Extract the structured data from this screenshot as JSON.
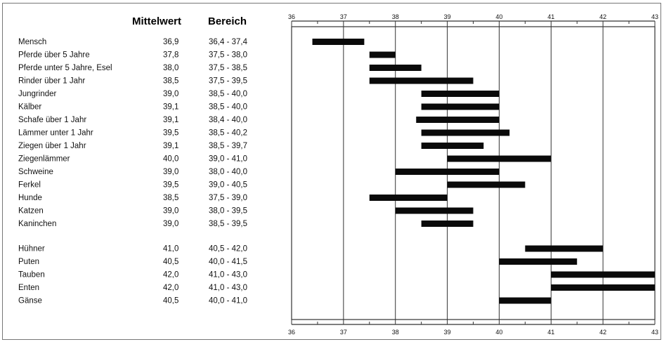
{
  "chart_data": {
    "type": "bar",
    "orientation": "horizontal-range",
    "headers": {
      "mean": "Mittelwert",
      "range": "Bereich"
    },
    "xlim": [
      36,
      43
    ],
    "xticks": [
      "36",
      "37",
      "38",
      "39",
      "40",
      "41",
      "42",
      "43"
    ],
    "grid": true,
    "groups": [
      {
        "rows": [
          {
            "label": "Mensch",
            "mean": "36,9",
            "range": "36,4 - 37,4",
            "min": 36.4,
            "max": 37.4
          },
          {
            "label": "Pferde über 5 Jahre",
            "mean": "37,8",
            "range": "37,5 - 38,0",
            "min": 37.5,
            "max": 38.0
          },
          {
            "label": "Pferde unter 5 Jahre, Esel",
            "mean": "38,0",
            "range": "37,5 - 38,5",
            "min": 37.5,
            "max": 38.5
          },
          {
            "label": "Rinder über 1 Jahr",
            "mean": "38,5",
            "range": "37,5 - 39,5",
            "min": 37.5,
            "max": 39.5
          },
          {
            "label": "Jungrinder",
            "mean": "39,0",
            "range": "38,5 - 40,0",
            "min": 38.5,
            "max": 40.0
          },
          {
            "label": "Kälber",
            "mean": "39,1",
            "range": "38,5 - 40,0",
            "min": 38.5,
            "max": 40.0
          },
          {
            "label": "Schafe über 1 Jahr",
            "mean": "39,1",
            "range": "38,4 - 40,0",
            "min": 38.4,
            "max": 40.0
          },
          {
            "label": "Lämmer unter 1 Jahr",
            "mean": "39,5",
            "range": "38,5 - 40,2",
            "min": 38.5,
            "max": 40.2
          },
          {
            "label": "Ziegen über 1 Jahr",
            "mean": "39,1",
            "range": "38,5 - 39,7",
            "min": 38.5,
            "max": 39.7
          },
          {
            "label": "Ziegenlämmer",
            "mean": "40,0",
            "range": "39,0 - 41,0",
            "min": 39.0,
            "max": 41.0
          },
          {
            "label": "Schweine",
            "mean": "39,0",
            "range": "38,0 - 40,0",
            "min": 38.0,
            "max": 40.0
          },
          {
            "label": "Ferkel",
            "mean": "39,5",
            "range": "39,0 - 40,5",
            "min": 39.0,
            "max": 40.5
          },
          {
            "label": "Hunde",
            "mean": "38,5",
            "range": "37,5 - 39,0",
            "min": 37.5,
            "max": 39.0
          },
          {
            "label": "Katzen",
            "mean": "39,0",
            "range": "38,0 - 39,5",
            "min": 38.0,
            "max": 39.5
          },
          {
            "label": "Kaninchen",
            "mean": "39,0",
            "range": "38,5 - 39,5",
            "min": 38.5,
            "max": 39.5
          }
        ]
      },
      {
        "rows": [
          {
            "label": "Hühner",
            "mean": "41,0",
            "range": "40,5 - 42,0",
            "min": 40.5,
            "max": 42.0
          },
          {
            "label": "Puten",
            "mean": "40,5",
            "range": "40,0 - 41,5",
            "min": 40.0,
            "max": 41.5
          },
          {
            "label": "Tauben",
            "mean": "42,0",
            "range": "41,0 - 43,0",
            "min": 41.0,
            "max": 43.0
          },
          {
            "label": "Enten",
            "mean": "42,0",
            "range": "41,0 - 43,0",
            "min": 41.0,
            "max": 43.0
          },
          {
            "label": "Gänse",
            "mean": "40,5",
            "range": "40,0 - 41,0",
            "min": 40.0,
            "max": 41.0
          }
        ]
      }
    ],
    "colors": {
      "bar": "#0a0a0a",
      "grid": "#333333",
      "text": "#111111"
    }
  }
}
